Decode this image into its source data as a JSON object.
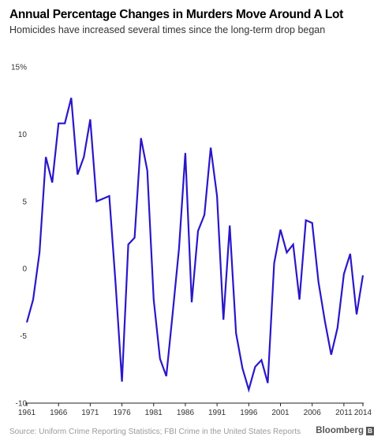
{
  "header": {
    "title": "Annual Percentage Changes in Murders Move Around A Lot",
    "subtitle": "Homicides have increased several times since the long-term drop began"
  },
  "footer": {
    "source": "Source: Uniform Crime Reporting Statistics; FBI Crime in the United States Reports",
    "brand": "Bloomberg",
    "brand_mark": "B"
  },
  "colors": {
    "line": "#2a17c9",
    "zero_line": "#222222",
    "text": "#000000"
  },
  "chart_data": {
    "type": "line",
    "title": "Annual Percentage Changes in Murders Move Around A Lot",
    "subtitle": "Homicides have increased several times since the long-term drop began",
    "xlabel": "",
    "ylabel": "",
    "ylim": [
      -10,
      15
    ],
    "xlim": [
      1961,
      2014
    ],
    "yticks": [
      -10,
      -5,
      0,
      5,
      10,
      15
    ],
    "ytick_labels": [
      "-10",
      "-5",
      "0",
      "5",
      "10",
      "15%"
    ],
    "xticks": [
      1961,
      1966,
      1971,
      1976,
      1981,
      1986,
      1991,
      1996,
      2001,
      2006,
      2011,
      2014
    ],
    "xtick_labels": [
      "1961",
      "1966",
      "1971",
      "1976",
      "1981",
      "1986",
      "1991",
      "1996",
      "2001",
      "2006",
      "2011",
      "2014"
    ],
    "grid": false,
    "series": [
      {
        "x": [
          1961,
          1962,
          1963,
          1964,
          1965,
          1966,
          1967,
          1968,
          1969,
          1970,
          1971,
          1972,
          1973,
          1974,
          1975,
          1976,
          1977,
          1978,
          1979,
          1980,
          1981,
          1982,
          1983,
          1984,
          1985,
          1986,
          1987,
          1988,
          1989,
          1990,
          1991,
          1992,
          1993,
          1994,
          1995,
          1996,
          1997,
          1998,
          1999,
          2000,
          2001,
          2002,
          2003,
          2004,
          2005,
          2006,
          2007,
          2008,
          2009,
          2010,
          2011,
          2012,
          2013,
          2014
        ],
        "values": [
          -4.0,
          -2.3,
          1.2,
          8.3,
          6.4,
          10.8,
          10.8,
          12.7,
          7.0,
          8.3,
          11.1,
          5.0,
          5.2,
          5.4,
          -1.1,
          -8.4,
          1.8,
          2.3,
          9.7,
          7.3,
          -2.3,
          -6.7,
          -8.0,
          -3.3,
          1.5,
          8.6,
          -2.5,
          2.8,
          4.0,
          9.0,
          5.4,
          -3.8,
          3.2,
          -4.8,
          -7.4,
          -9.0,
          -7.3,
          -6.8,
          -8.5,
          0.4,
          2.9,
          1.2,
          1.8,
          -2.3,
          3.6,
          3.4,
          -1.0,
          -3.9,
          -6.4,
          -4.4,
          -0.4,
          1.1,
          -3.4,
          -0.5
        ]
      }
    ]
  }
}
